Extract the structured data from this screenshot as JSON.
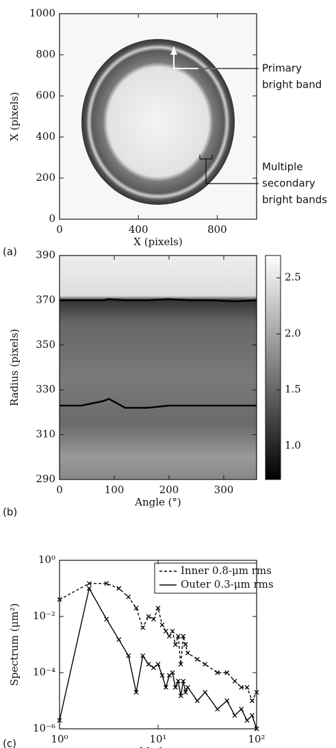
{
  "chart_data": [
    {
      "type": "image",
      "panel": "(a)",
      "x_label": "X (pixels)",
      "y_label": "X (pixels)",
      "xlim": [
        0,
        1000
      ],
      "ylim": [
        0,
        1000
      ],
      "xticks": [
        0,
        400,
        800
      ],
      "yticks": [
        0,
        200,
        400,
        600,
        800,
        1000
      ],
      "annotations": [
        {
          "lines": [
            "Primary",
            "bright band"
          ]
        },
        {
          "lines": [
            "Multiple",
            "secondary",
            "bright bands"
          ]
        }
      ]
    },
    {
      "type": "heatmap",
      "panel": "(b)",
      "x_label": "Angle (°)",
      "y_label": "Radius (pixels)",
      "xlim": [
        0,
        360
      ],
      "ylim": [
        290,
        390
      ],
      "xticks": [
        0,
        100,
        200,
        300
      ],
      "yticks": [
        290,
        310,
        330,
        350,
        370,
        390
      ],
      "colorbar": {
        "lim": [
          0.7,
          2.7
        ],
        "ticks": [
          {
            "value": 1,
            "label": "1.0"
          },
          {
            "value": 1.5,
            "label": "1.5"
          },
          {
            "value": 2,
            "label": "2.0"
          },
          {
            "value": 2.5,
            "label": "2.5"
          }
        ]
      },
      "x": [
        0,
        40,
        80,
        90,
        120,
        160,
        200,
        240,
        280,
        320,
        360
      ],
      "series": [
        {
          "color": "#000000",
          "values": [
            370,
            370,
            370,
            370.5,
            370,
            370,
            370.5,
            370,
            370,
            369.5,
            370
          ]
        },
        {
          "color": "#000000",
          "values": [
            323,
            323,
            325,
            326,
            322,
            322,
            323,
            323,
            323,
            323,
            323
          ]
        }
      ]
    },
    {
      "type": "line",
      "panel": "(c)",
      "x_label": "Mode ℓ",
      "y_label": "Spectrum (μm²)",
      "xlog": true,
      "ylog": true,
      "xlim": [
        1,
        100
      ],
      "ylim": [
        1e-06,
        1
      ],
      "xticks": [
        {
          "value": 1,
          "label": "10⁰"
        },
        {
          "value": 10,
          "label": "10¹"
        },
        {
          "value": 100,
          "label": "10²"
        }
      ],
      "yticks": [
        {
          "value": 1e-06,
          "label": "10⁻⁶"
        },
        {
          "value": 0.0001,
          "label": "10⁻⁴"
        },
        {
          "value": 0.01,
          "label": "10⁻²"
        },
        {
          "value": 1,
          "label": "10⁰"
        }
      ],
      "x": [
        1,
        2,
        3,
        4,
        5,
        6,
        7,
        8,
        9,
        10,
        11,
        12,
        13,
        14,
        15,
        16,
        17,
        18,
        19,
        20,
        25,
        30,
        40,
        50,
        60,
        70,
        80,
        90,
        100
      ],
      "series": [
        {
          "name": "Inner 0.8-μm rms",
          "color": "#000000",
          "dash": true,
          "values": [
            0.04,
            0.15,
            0.15,
            0.1,
            0.05,
            0.02,
            0.004,
            0.01,
            0.008,
            0.02,
            0.005,
            0.003,
            0.002,
            0.003,
            0.001,
            0.002,
            0.0002,
            0.002,
            0.001,
            0.0005,
            0.0003,
            0.0002,
            0.0001,
            0.0001,
            5e-05,
            3e-05,
            3e-05,
            1e-05,
            2e-05
          ]
        },
        {
          "name": "Outer 0.3-μm rms",
          "color": "#000000",
          "dash": false,
          "values": [
            2e-06,
            0.1,
            0.008,
            0.0015,
            0.0004,
            2e-05,
            0.0004,
            0.0002,
            0.00015,
            0.0002,
            8e-05,
            3e-05,
            8e-05,
            0.0001,
            3e-05,
            5e-05,
            1.5e-05,
            5e-05,
            2e-05,
            3e-05,
            1e-05,
            2e-05,
            5e-06,
            1e-05,
            3e-06,
            5e-06,
            2e-06,
            3e-06,
            1e-06
          ]
        }
      ]
    }
  ]
}
